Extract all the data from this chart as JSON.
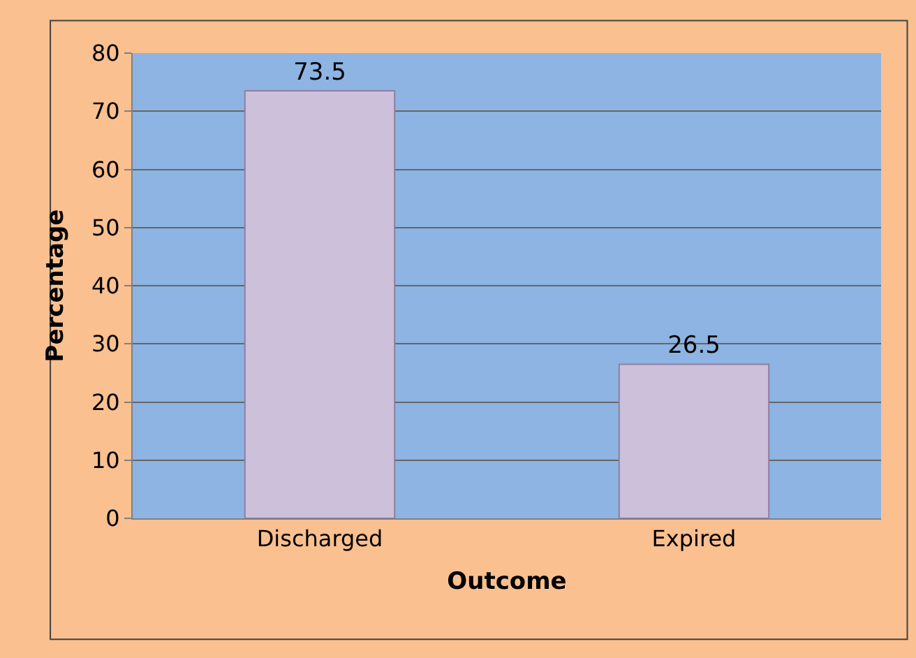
{
  "chart_data": {
    "type": "bar",
    "xlabel": "Outcome",
    "ylabel": "Percentage",
    "categories": [
      "Discharged",
      "Expired"
    ],
    "values": [
      73.5,
      26.5
    ],
    "color": "#ccc0da",
    "ylim": [
      0,
      80
    ],
    "yticks": [
      0,
      10,
      20,
      30,
      40,
      50,
      60,
      70,
      80
    ],
    "grid": "y",
    "data_labels": true
  }
}
